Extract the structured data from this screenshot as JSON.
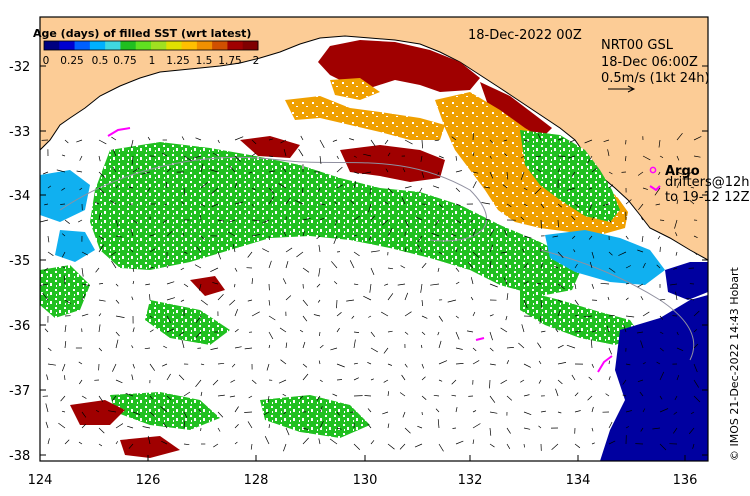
{
  "title_date": "18-Dec-2022 00Z",
  "product": {
    "line1": "NRT00 GSL",
    "line2": "18-Dec 06:00Z",
    "line3": "0.5m/s (1kt 24h)"
  },
  "colorbar": {
    "title": "Age (days) of filled SST (wrt latest)",
    "labels": [
      "0",
      "0.25",
      "0.5",
      "0.75",
      "1",
      "1.25",
      "1.5",
      "1.75",
      "2"
    ],
    "colors": [
      "#000080",
      "#0000d0",
      "#0060ff",
      "#00b0ff",
      "#40d8e0",
      "#20c020",
      "#60e020",
      "#a0e020",
      "#e0e000",
      "#ffc000",
      "#f09000",
      "#d05000",
      "#a00000",
      "#800000"
    ]
  },
  "legend": {
    "argo_label": "Argo",
    "drifters_label": "drifters@12h",
    "drifters_range": "to 19-12 12Z",
    "argo_color": "#ff00ff"
  },
  "axes": {
    "x_ticks": [
      "124",
      "126",
      "128",
      "130",
      "132",
      "134",
      "136"
    ],
    "y_ticks": [
      "-32",
      "-33",
      "-34",
      "-35",
      "-36",
      "-37",
      "-38"
    ]
  },
  "credit": "© IMOS 21-Dec-2022 14:43 Hobart",
  "colors": {
    "land": "#fccc96",
    "coast": "#000000",
    "no_data": "#ffffff",
    "age_blue": "#0000a0",
    "age_cyan": "#10b0f0",
    "age_green": "#20c020",
    "age_orange": "#f0a000",
    "age_darkred": "#a00000"
  },
  "icons": [
    "velocity-scale-arrow-icon",
    "argo-float-icon",
    "drifter-track-icon",
    "current-vector-icon"
  ]
}
